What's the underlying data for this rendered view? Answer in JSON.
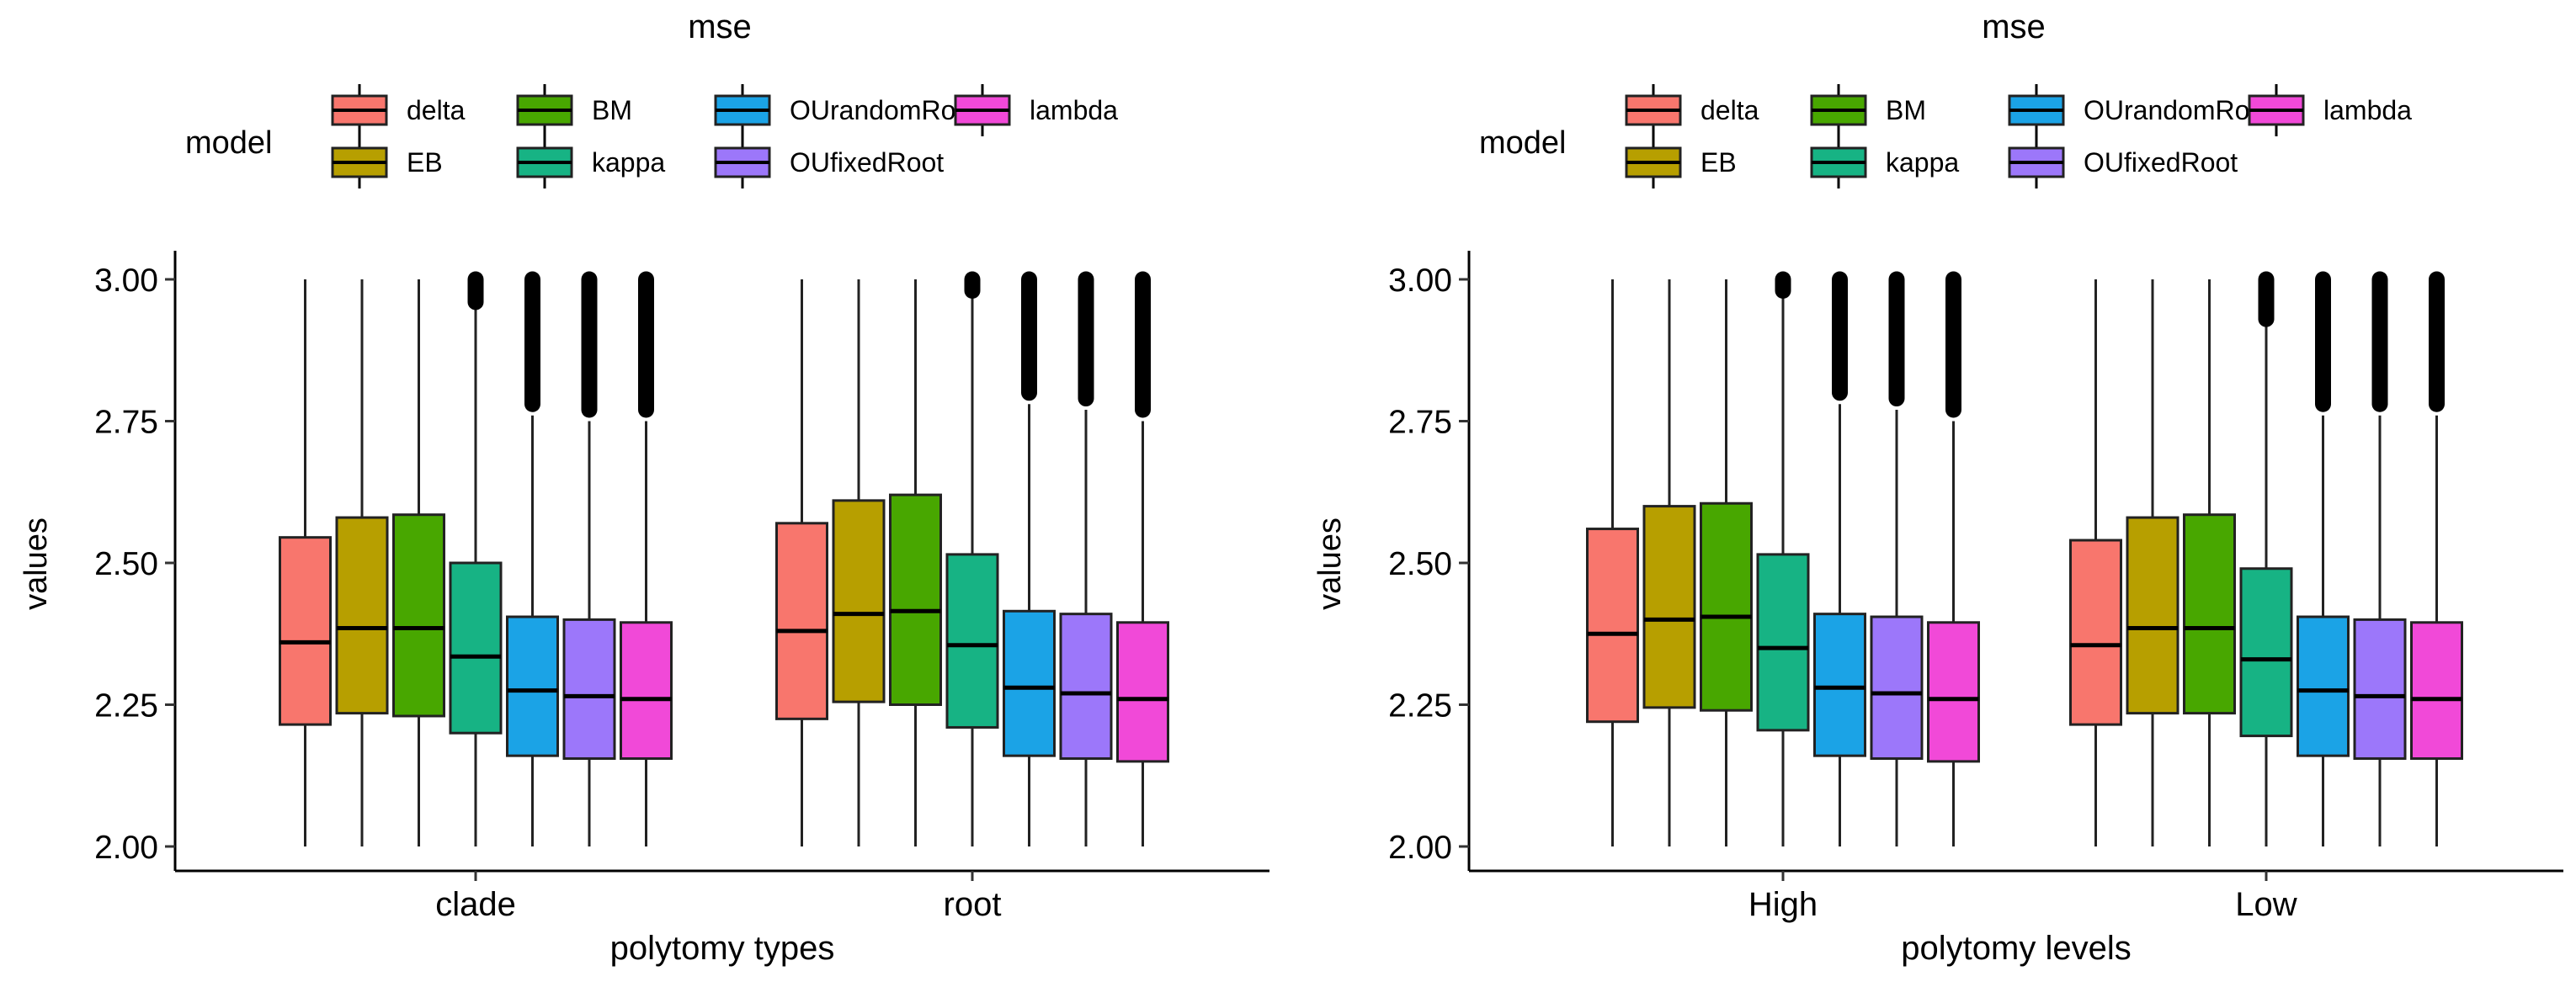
{
  "chart_data": [
    {
      "type": "boxplot",
      "title": "mse",
      "xlabel": "polytomy types",
      "ylabel": "values",
      "ylim": [
        2.0,
        3.0
      ],
      "yticks": [
        2.0,
        2.25,
        2.5,
        2.75,
        3.0
      ],
      "ytick_labels": [
        "2.00",
        "2.25",
        "2.50",
        "2.75",
        "3.00"
      ],
      "categories": [
        "clade",
        "root"
      ],
      "legend": {
        "title": "model",
        "position": "top"
      },
      "series": [
        {
          "name": "delta",
          "color": "#F8766D",
          "boxes": [
            {
              "whisker_low": 2.0,
              "q1": 2.215,
              "median": 2.36,
              "q3": 2.545,
              "whisker_high": 3.0,
              "outliers_from": null
            },
            {
              "whisker_low": 2.0,
              "q1": 2.225,
              "median": 2.38,
              "q3": 2.57,
              "whisker_high": 3.0,
              "outliers_from": null
            }
          ]
        },
        {
          "name": "EB",
          "color": "#B79F00",
          "boxes": [
            {
              "whisker_low": 2.0,
              "q1": 2.235,
              "median": 2.385,
              "q3": 2.58,
              "whisker_high": 3.0,
              "outliers_from": null
            },
            {
              "whisker_low": 2.0,
              "q1": 2.255,
              "median": 2.41,
              "q3": 2.61,
              "whisker_high": 3.0,
              "outliers_from": null
            }
          ]
        },
        {
          "name": "BM",
          "color": "#48A700",
          "boxes": [
            {
              "whisker_low": 2.0,
              "q1": 2.23,
              "median": 2.385,
              "q3": 2.585,
              "whisker_high": 3.0,
              "outliers_from": null
            },
            {
              "whisker_low": 2.0,
              "q1": 2.25,
              "median": 2.415,
              "q3": 2.62,
              "whisker_high": 3.0,
              "outliers_from": null
            }
          ]
        },
        {
          "name": "kappa",
          "color": "#17B384",
          "boxes": [
            {
              "whisker_low": 2.0,
              "q1": 2.2,
              "median": 2.335,
              "q3": 2.5,
              "whisker_high": 2.95,
              "outliers_from": 2.96
            },
            {
              "whisker_low": 2.0,
              "q1": 2.21,
              "median": 2.355,
              "q3": 2.515,
              "whisker_high": 2.97,
              "outliers_from": 2.98
            }
          ]
        },
        {
          "name": "OUrandomRoot",
          "color": "#1BA3E6",
          "boxes": [
            {
              "whisker_low": 2.0,
              "q1": 2.16,
              "median": 2.275,
              "q3": 2.405,
              "whisker_high": 2.76,
              "outliers_from": 2.78
            },
            {
              "whisker_low": 2.0,
              "q1": 2.16,
              "median": 2.28,
              "q3": 2.415,
              "whisker_high": 2.78,
              "outliers_from": 2.8
            }
          ]
        },
        {
          "name": "OUfixedRoot",
          "color": "#9C77FA",
          "boxes": [
            {
              "whisker_low": 2.0,
              "q1": 2.155,
              "median": 2.265,
              "q3": 2.4,
              "whisker_high": 2.75,
              "outliers_from": 2.77
            },
            {
              "whisker_low": 2.0,
              "q1": 2.155,
              "median": 2.27,
              "q3": 2.41,
              "whisker_high": 2.77,
              "outliers_from": 2.79
            }
          ]
        },
        {
          "name": "lambda",
          "color": "#F149D8",
          "boxes": [
            {
              "whisker_low": 2.0,
              "q1": 2.155,
              "median": 2.26,
              "q3": 2.395,
              "whisker_high": 2.75,
              "outliers_from": 2.77
            },
            {
              "whisker_low": 2.0,
              "q1": 2.15,
              "median": 2.26,
              "q3": 2.395,
              "whisker_high": 2.75,
              "outliers_from": 2.77
            }
          ]
        }
      ]
    },
    {
      "type": "boxplot",
      "title": "mse",
      "xlabel": "polytomy levels",
      "ylabel": "values",
      "ylim": [
        2.0,
        3.0
      ],
      "yticks": [
        2.0,
        2.25,
        2.5,
        2.75,
        3.0
      ],
      "ytick_labels": [
        "2.00",
        "2.25",
        "2.50",
        "2.75",
        "3.00"
      ],
      "categories": [
        "High",
        "Low"
      ],
      "legend": {
        "title": "model",
        "position": "top"
      },
      "series": [
        {
          "name": "delta",
          "color": "#F8766D",
          "boxes": [
            {
              "whisker_low": 2.0,
              "q1": 2.22,
              "median": 2.375,
              "q3": 2.56,
              "whisker_high": 3.0,
              "outliers_from": null
            },
            {
              "whisker_low": 2.0,
              "q1": 2.215,
              "median": 2.355,
              "q3": 2.54,
              "whisker_high": 3.0,
              "outliers_from": null
            }
          ]
        },
        {
          "name": "EB",
          "color": "#B79F00",
          "boxes": [
            {
              "whisker_low": 2.0,
              "q1": 2.245,
              "median": 2.4,
              "q3": 2.6,
              "whisker_high": 3.0,
              "outliers_from": null
            },
            {
              "whisker_low": 2.0,
              "q1": 2.235,
              "median": 2.385,
              "q3": 2.58,
              "whisker_high": 3.0,
              "outliers_from": null
            }
          ]
        },
        {
          "name": "BM",
          "color": "#48A700",
          "boxes": [
            {
              "whisker_low": 2.0,
              "q1": 2.24,
              "median": 2.405,
              "q3": 2.605,
              "whisker_high": 3.0,
              "outliers_from": null
            },
            {
              "whisker_low": 2.0,
              "q1": 2.235,
              "median": 2.385,
              "q3": 2.585,
              "whisker_high": 3.0,
              "outliers_from": null
            }
          ]
        },
        {
          "name": "kappa",
          "color": "#17B384",
          "boxes": [
            {
              "whisker_low": 2.0,
              "q1": 2.205,
              "median": 2.35,
              "q3": 2.515,
              "whisker_high": 2.97,
              "outliers_from": 2.98
            },
            {
              "whisker_low": 2.0,
              "q1": 2.195,
              "median": 2.33,
              "q3": 2.49,
              "whisker_high": 2.92,
              "outliers_from": 2.93
            }
          ]
        },
        {
          "name": "OUrandomRoot",
          "color": "#1BA3E6",
          "boxes": [
            {
              "whisker_low": 2.0,
              "q1": 2.16,
              "median": 2.28,
              "q3": 2.41,
              "whisker_high": 2.78,
              "outliers_from": 2.8
            },
            {
              "whisker_low": 2.0,
              "q1": 2.16,
              "median": 2.275,
              "q3": 2.405,
              "whisker_high": 2.76,
              "outliers_from": 2.78
            }
          ]
        },
        {
          "name": "OUfixedRoot",
          "color": "#9C77FA",
          "boxes": [
            {
              "whisker_low": 2.0,
              "q1": 2.155,
              "median": 2.27,
              "q3": 2.405,
              "whisker_high": 2.77,
              "outliers_from": 2.79
            },
            {
              "whisker_low": 2.0,
              "q1": 2.155,
              "median": 2.265,
              "q3": 2.4,
              "whisker_high": 2.76,
              "outliers_from": 2.78
            }
          ]
        },
        {
          "name": "lambda",
          "color": "#F149D8",
          "boxes": [
            {
              "whisker_low": 2.0,
              "q1": 2.15,
              "median": 2.26,
              "q3": 2.395,
              "whisker_high": 2.75,
              "outliers_from": 2.77
            },
            {
              "whisker_low": 2.0,
              "q1": 2.155,
              "median": 2.26,
              "q3": 2.395,
              "whisker_high": 2.76,
              "outliers_from": 2.78
            }
          ]
        }
      ]
    }
  ]
}
